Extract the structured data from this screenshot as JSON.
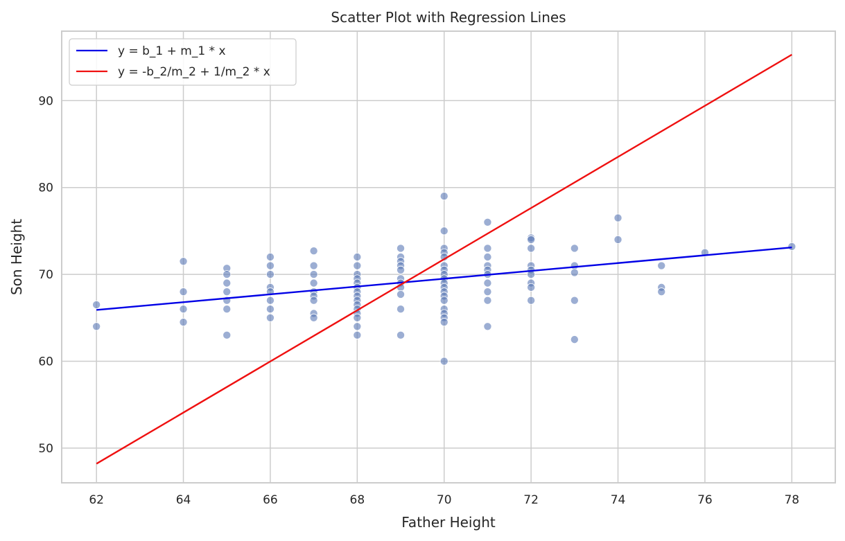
{
  "chart_data": {
    "type": "scatter",
    "title": "Scatter Plot with Regression Lines",
    "xlabel": "Father Height",
    "ylabel": "Son Height",
    "xlim": [
      61.2,
      79.0
    ],
    "ylim": [
      46.0,
      98.0
    ],
    "xticks": [
      62,
      64,
      66,
      68,
      70,
      72,
      74,
      76,
      78
    ],
    "yticks": [
      50,
      60,
      70,
      80,
      90
    ],
    "grid": true,
    "legend_position": "upper-left",
    "colors": {
      "points": "#5a78b6",
      "line1": "#0000e6",
      "line2": "#ef1010",
      "grid": "#cccccc",
      "spine": "#cccccc"
    },
    "points": [
      [
        62,
        66.5
      ],
      [
        62,
        64
      ],
      [
        64,
        71.5
      ],
      [
        64,
        68
      ],
      [
        64,
        66
      ],
      [
        64,
        64.5
      ],
      [
        65,
        70.7
      ],
      [
        65,
        70
      ],
      [
        65,
        69
      ],
      [
        65,
        68
      ],
      [
        65,
        67
      ],
      [
        65,
        66
      ],
      [
        65,
        63
      ],
      [
        66,
        72
      ],
      [
        66,
        71
      ],
      [
        66,
        70
      ],
      [
        66,
        68.5
      ],
      [
        66,
        68
      ],
      [
        66,
        67
      ],
      [
        66,
        66
      ],
      [
        66,
        65
      ],
      [
        67,
        72.7
      ],
      [
        67,
        71
      ],
      [
        67,
        70
      ],
      [
        67,
        69
      ],
      [
        67,
        68
      ],
      [
        67,
        67.5
      ],
      [
        67,
        67
      ],
      [
        67,
        65.5
      ],
      [
        67,
        65
      ],
      [
        68,
        72
      ],
      [
        68,
        71
      ],
      [
        68,
        70
      ],
      [
        68,
        69.5
      ],
      [
        68,
        69
      ],
      [
        68,
        68.5
      ],
      [
        68,
        68
      ],
      [
        68,
        67.5
      ],
      [
        68,
        67
      ],
      [
        68,
        66.5
      ],
      [
        68,
        66
      ],
      [
        68,
        65.5
      ],
      [
        68,
        65
      ],
      [
        68,
        64
      ],
      [
        68,
        63
      ],
      [
        69,
        73
      ],
      [
        69,
        72
      ],
      [
        69,
        71.5
      ],
      [
        69,
        71
      ],
      [
        69,
        70.5
      ],
      [
        69,
        69.5
      ],
      [
        69,
        69
      ],
      [
        69,
        68.5
      ],
      [
        69,
        67.7
      ],
      [
        69,
        66
      ],
      [
        69,
        63
      ],
      [
        70,
        79
      ],
      [
        70,
        75
      ],
      [
        70,
        73
      ],
      [
        70,
        72.5
      ],
      [
        70,
        72
      ],
      [
        70,
        71
      ],
      [
        70,
        70.5
      ],
      [
        70,
        70
      ],
      [
        70,
        69.5
      ],
      [
        70,
        69
      ],
      [
        70,
        68.5
      ],
      [
        70,
        68
      ],
      [
        70,
        67.5
      ],
      [
        70,
        67
      ],
      [
        70,
        66
      ],
      [
        70,
        65.5
      ],
      [
        70,
        65
      ],
      [
        70,
        64.5
      ],
      [
        70,
        60
      ],
      [
        71,
        76
      ],
      [
        71,
        73
      ],
      [
        71,
        72
      ],
      [
        71,
        71
      ],
      [
        71,
        70.5
      ],
      [
        71,
        70
      ],
      [
        71,
        69
      ],
      [
        71,
        68
      ],
      [
        71,
        67
      ],
      [
        71,
        64
      ],
      [
        72,
        74.2
      ],
      [
        72,
        74
      ],
      [
        72,
        73
      ],
      [
        72,
        71
      ],
      [
        72,
        70.5
      ],
      [
        72,
        70
      ],
      [
        72,
        69
      ],
      [
        72,
        68.5
      ],
      [
        72,
        67
      ],
      [
        73,
        73
      ],
      [
        73,
        71
      ],
      [
        73,
        70.2
      ],
      [
        73,
        67
      ],
      [
        73,
        62.5
      ],
      [
        74,
        76.5
      ],
      [
        74,
        74
      ],
      [
        75,
        71
      ],
      [
        75,
        68.5
      ],
      [
        75,
        68
      ],
      [
        76,
        72.5
      ],
      [
        78,
        73.2
      ]
    ],
    "series": [
      {
        "name": "y = b_1 + m_1 * x",
        "x": [
          62,
          78
        ],
        "y": [
          65.9,
          73.1
        ]
      },
      {
        "name": "y = -b_2/m_2 + 1/m_2 * x",
        "x": [
          62,
          78
        ],
        "y": [
          48.2,
          95.3
        ]
      }
    ]
  }
}
